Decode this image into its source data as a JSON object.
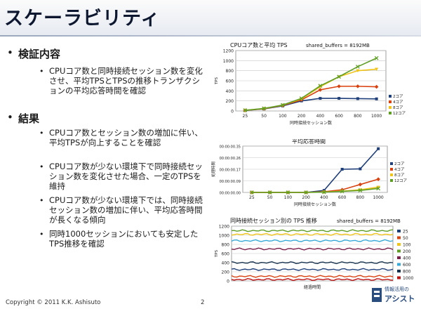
{
  "slide": {
    "title": "スケーラビリティ",
    "footer": "Copyright © 2011 K.K. Ashisuto",
    "page_number": "2",
    "logo": {
      "line1": "情報活用の",
      "line2": "アシスト"
    }
  },
  "bullets": [
    {
      "heading": "検証内容",
      "items": [
        "CPUコア数と同時接続セッション数を変化させ、平均TPSとTPSの推移トランザクションの平均応答時間を確認"
      ]
    },
    {
      "heading": "結果",
      "items": [
        "CPUコア数とセッション数の増加に伴い、平均TPSが向上することを確認",
        "CPUコア数が少ない環境下で同時接続セッション数を変化させた場合、一定のTPSを維持",
        "CPUコア数が少ない環境下では、同時接続セッション数の増加に伴い、平均応答時間が長くなる傾向",
        "同時1000セッションにおいても安定したTPS推移を確認"
      ]
    }
  ],
  "chart_data": [
    {
      "type": "line",
      "title": "CPUコア数と平均 TPS",
      "subtitle": "shared_buffers = 8192MB",
      "xlabel": "同時接続セッション数",
      "ylabel": "TPS",
      "categories": [
        "25",
        "50",
        "100",
        "200",
        "400",
        "600",
        "800",
        "1000"
      ],
      "ylim": [
        0,
        1200
      ],
      "yticks": [
        "0",
        "200",
        "400",
        "600",
        "800",
        "1000",
        "1200"
      ],
      "legend": "right",
      "series": [
        {
          "name": "2コア",
          "color": "#1f3f7a",
          "values": [
            10,
            40,
            100,
            200,
            250,
            250,
            245,
            240
          ]
        },
        {
          "name": "4コア",
          "color": "#d9410f",
          "values": [
            12,
            45,
            110,
            220,
            420,
            490,
            490,
            480
          ]
        },
        {
          "name": "8コア",
          "color": "#f0c419",
          "values": [
            13,
            48,
            115,
            240,
            480,
            680,
            800,
            830
          ]
        },
        {
          "name": "12コア",
          "color": "#5e9e24",
          "values": [
            14,
            50,
            118,
            250,
            500,
            680,
            880,
            1050
          ]
        }
      ]
    },
    {
      "type": "line",
      "title": "平均応答時間",
      "xlabel": "同時接続セッション数",
      "ylabel": "処理時間",
      "categories": [
        "25",
        "50",
        "100",
        "200",
        "400",
        "600",
        "800",
        "1000"
      ],
      "ylim": [
        0,
        0.35
      ],
      "yticks": [
        "00:00:00.00",
        "00:00:00.09",
        "00:00:00.17",
        "00:00:00.26",
        "00:00:00.35"
      ],
      "legend": "right",
      "series": [
        {
          "name": "2コア",
          "color": "#1f3f7a",
          "values": [
            0.0,
            0.0,
            0.0,
            0.0,
            0.015,
            0.175,
            0.178,
            0.33
          ]
        },
        {
          "name": "4コア",
          "color": "#d9410f",
          "values": [
            0.0,
            0.0,
            0.0,
            0.0,
            0.005,
            0.02,
            0.06,
            0.1
          ]
        },
        {
          "name": "8コア",
          "color": "#f0c419",
          "values": [
            0.0,
            0.0,
            0.0,
            0.0,
            0.003,
            0.01,
            0.02,
            0.04
          ]
        },
        {
          "name": "12コア",
          "color": "#5e9e24",
          "values": [
            0.0,
            0.0,
            0.0,
            0.0,
            0.002,
            0.008,
            0.015,
            0.03
          ]
        }
      ]
    },
    {
      "type": "line",
      "title": "同時接続セッション別の TPS 推移",
      "subtitle": "shared_buffers = 8192MB",
      "xlabel": "経過時間",
      "ylabel": "TPS",
      "ylim": [
        0,
        1200
      ],
      "yticks": [
        "0",
        "200",
        "400",
        "600",
        "800",
        "1000",
        "1200"
      ],
      "legend": "right",
      "series": [
        {
          "name": "25",
          "color": "#1f3f7a",
          "level": 250
        },
        {
          "name": "50",
          "color": "#d9410f",
          "level": 100
        },
        {
          "name": "100",
          "color": "#f0c419",
          "level": 1020
        },
        {
          "name": "200",
          "color": "#5e9e24",
          "level": 1100
        },
        {
          "name": "400",
          "color": "#7a1f4a",
          "level": 700
        },
        {
          "name": "600",
          "color": "#37a9d8",
          "level": 880
        },
        {
          "name": "800",
          "color": "#17324d",
          "level": 400
        },
        {
          "name": "1000",
          "color": "#bb1111",
          "level": 30
        }
      ]
    }
  ]
}
